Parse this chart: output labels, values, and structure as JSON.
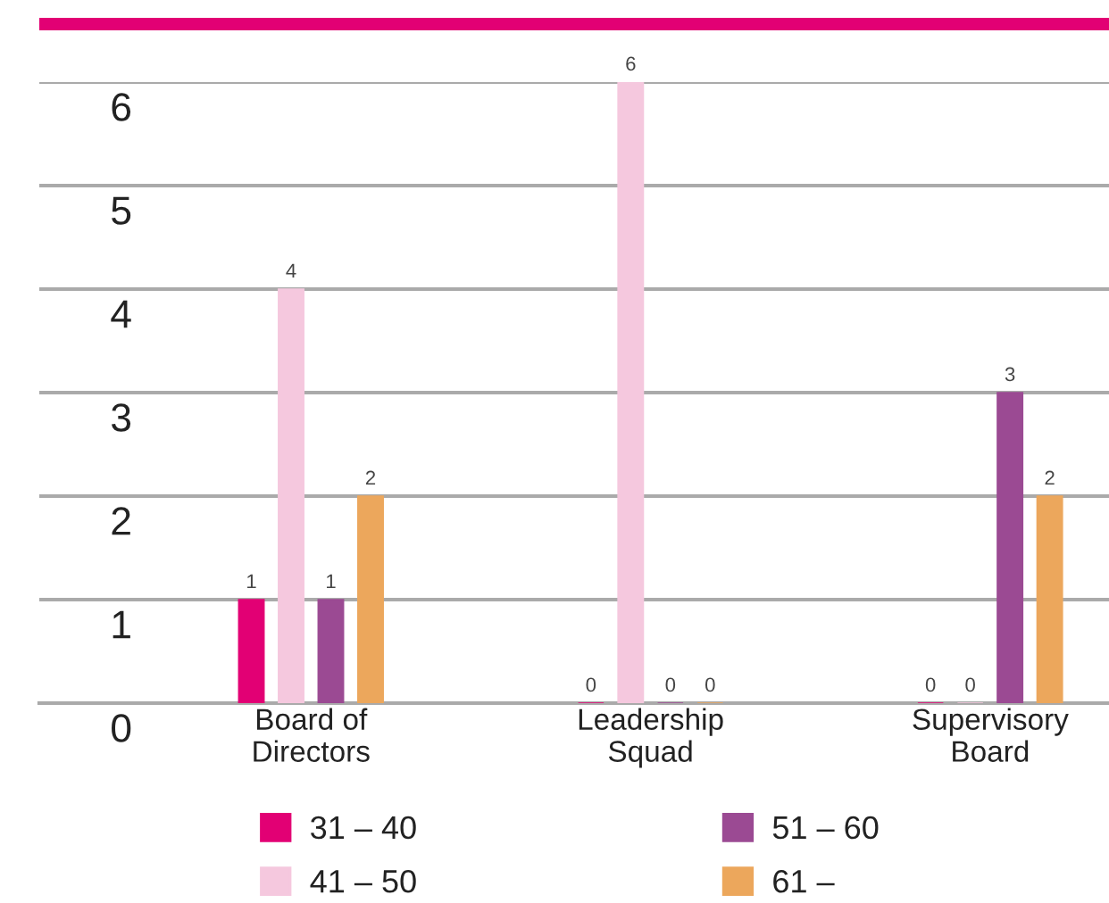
{
  "chart_data": {
    "type": "bar",
    "categories": [
      "Board of Directors",
      "Leadership Squad",
      "Supervisory Board"
    ],
    "series": [
      {
        "name": "31 – 40",
        "color": "#e20074",
        "values": [
          1,
          0,
          0
        ]
      },
      {
        "name": "41 – 50",
        "color": "#f5c8de",
        "values": [
          4,
          6,
          0
        ]
      },
      {
        "name": "51 – 60",
        "color": "#9b4a93",
        "values": [
          1,
          0,
          3
        ]
      },
      {
        "name": "61 –",
        "color": "#eca75c",
        "values": [
          2,
          0,
          2
        ]
      }
    ],
    "ylim": [
      0,
      6
    ],
    "yticks": [
      0,
      1,
      2,
      3,
      4,
      5,
      6
    ],
    "grid": "y",
    "legend": "bottom",
    "data_labels": true
  }
}
